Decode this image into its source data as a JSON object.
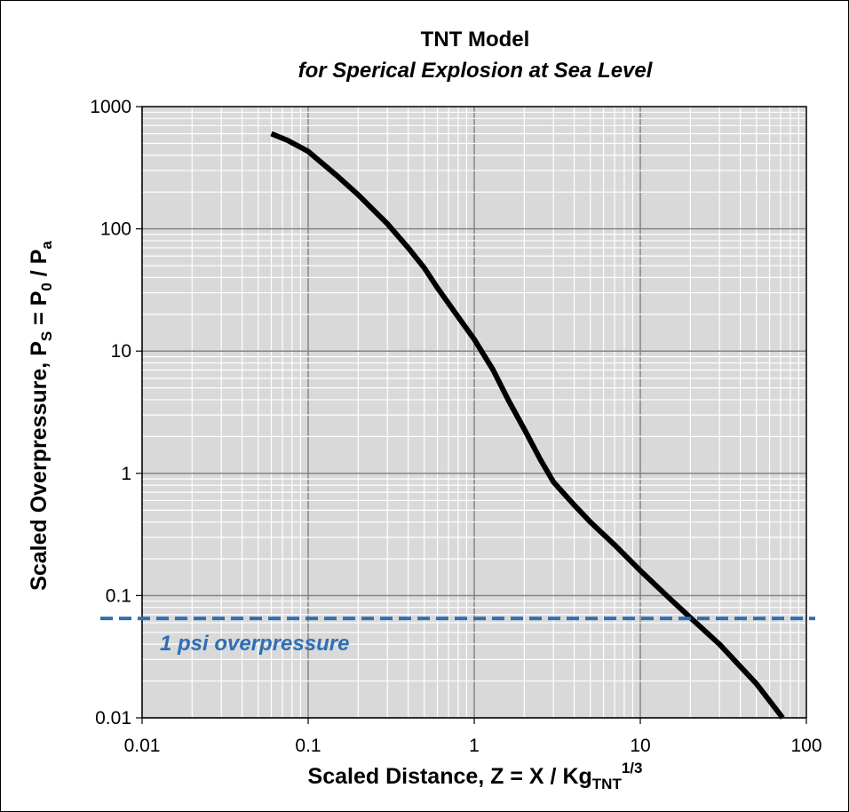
{
  "chart_data": {
    "type": "line",
    "title": "TNT Model",
    "subtitle": "for Sperical Explosion at Sea Level",
    "xlabel": {
      "main": "Scaled Distance,  Z = X / Kg",
      "sub": "TNT",
      "sup": "1/3"
    },
    "ylabel": {
      "p1": "Scaled Overpressure,  P",
      "s1": "S",
      "p2": " = P",
      "s2": "0",
      "p3": " / P",
      "s3": "a"
    },
    "x_scale": "log",
    "y_scale": "log",
    "xlim": [
      0.01,
      100
    ],
    "ylim": [
      0.01,
      1000
    ],
    "x_ticks": [
      "0.01",
      "0.1",
      "1",
      "10",
      "100"
    ],
    "y_ticks": [
      "0.01",
      "0.1",
      "1",
      "10",
      "100",
      "1000"
    ],
    "grid": true,
    "series": [
      {
        "color": "#000000",
        "x": [
          0.06,
          0.075,
          0.1,
          0.15,
          0.2,
          0.3,
          0.4,
          0.5,
          0.6,
          0.8,
          1.0,
          1.3,
          1.6,
          2.0,
          2.5,
          3.0,
          4.0,
          5.0,
          7.0,
          10,
          15,
          20,
          30,
          50,
          72
        ],
        "y": [
          600,
          530,
          430,
          270,
          190,
          110,
          70,
          48,
          33,
          19,
          12.5,
          7,
          4,
          2.3,
          1.3,
          0.85,
          0.55,
          0.4,
          0.26,
          0.16,
          0.095,
          0.066,
          0.04,
          0.019,
          0.01
        ]
      }
    ],
    "reference_line": {
      "y": 0.065,
      "color": "#2f6fb5",
      "label": "1 psi overpressure"
    }
  }
}
